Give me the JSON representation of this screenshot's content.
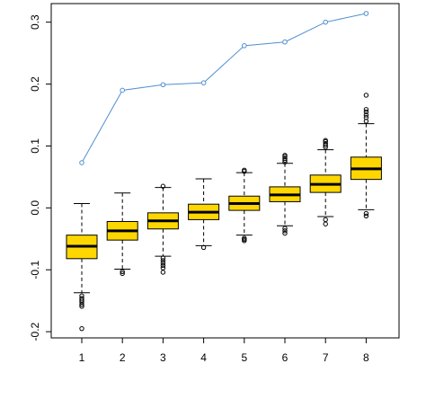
{
  "chart_data": {
    "type": "boxplot",
    "title": "",
    "xlabel": "",
    "ylabel": "",
    "grid": false,
    "x_ticks": [
      "1",
      "2",
      "3",
      "4",
      "5",
      "6",
      "7",
      "8"
    ],
    "y_ticks": [
      "-0.2",
      "-0.1",
      "0.0",
      "0.1",
      "0.2",
      "0.3"
    ],
    "ylim": [
      -0.21,
      0.33
    ],
    "colors": {
      "box_fill": "#FFD700",
      "line_series": "#4F8FD0",
      "axis": "#000000"
    },
    "boxes": [
      {
        "x": 1,
        "whisker_low": -0.137,
        "q1": -0.082,
        "median": -0.062,
        "q3": -0.044,
        "whisker_high": 0.007,
        "outliers_high": [],
        "outliers_low": [
          -0.142,
          -0.146,
          -0.149,
          -0.152,
          -0.156,
          -0.159,
          -0.195
        ]
      },
      {
        "x": 2,
        "whisker_low": -0.099,
        "q1": -0.052,
        "median": -0.037,
        "q3": -0.022,
        "whisker_high": 0.024,
        "outliers_high": [],
        "outliers_low": [
          -0.103,
          -0.106
        ]
      },
      {
        "x": 3,
        "whisker_low": -0.078,
        "q1": -0.034,
        "median": -0.021,
        "q3": -0.008,
        "whisker_high": 0.033,
        "outliers_high": [
          0.035
        ],
        "outliers_low": [
          -0.081,
          -0.085,
          -0.089,
          -0.093,
          -0.097,
          -0.104
        ]
      },
      {
        "x": 4,
        "whisker_low": -0.061,
        "q1": -0.019,
        "median": -0.007,
        "q3": 0.006,
        "whisker_high": 0.047,
        "outliers_high": [],
        "outliers_low": [
          -0.064
        ]
      },
      {
        "x": 5,
        "whisker_low": -0.044,
        "q1": -0.004,
        "median": 0.007,
        "q3": 0.019,
        "whisker_high": 0.057,
        "outliers_high": [
          0.059,
          0.061
        ],
        "outliers_low": [
          -0.049,
          -0.051,
          -0.053
        ]
      },
      {
        "x": 6,
        "whisker_low": -0.029,
        "q1": 0.01,
        "median": 0.021,
        "q3": 0.034,
        "whisker_high": 0.072,
        "outliers_high": [
          0.074,
          0.077,
          0.08,
          0.083,
          0.085
        ],
        "outliers_low": [
          -0.033,
          -0.037,
          -0.041
        ]
      },
      {
        "x": 7,
        "whisker_low": -0.014,
        "q1": 0.025,
        "median": 0.038,
        "q3": 0.053,
        "whisker_high": 0.094,
        "outliers_high": [
          0.098,
          0.101,
          0.104,
          0.107,
          0.109
        ],
        "outliers_low": [
          -0.019,
          -0.026
        ]
      },
      {
        "x": 8,
        "whisker_low": -0.003,
        "q1": 0.046,
        "median": 0.063,
        "q3": 0.082,
        "whisker_high": 0.136,
        "outliers_high": [
          0.14,
          0.146,
          0.15,
          0.155,
          0.159,
          0.182
        ],
        "outliers_low": [
          -0.009,
          -0.013
        ]
      }
    ],
    "series": [
      {
        "type": "line",
        "x": [
          1,
          2,
          3,
          4,
          5,
          6,
          7,
          8
        ],
        "values": [
          0.073,
          0.19,
          0.199,
          0.202,
          0.262,
          0.268,
          0.3,
          0.314
        ]
      }
    ]
  }
}
